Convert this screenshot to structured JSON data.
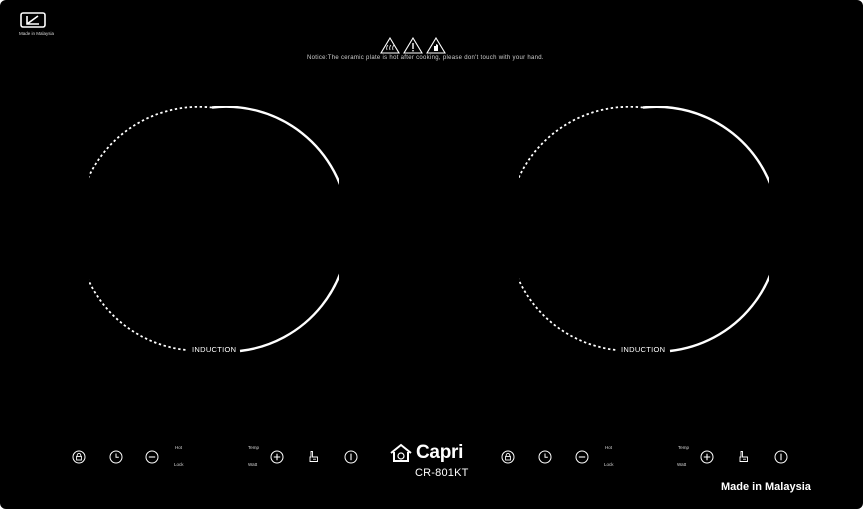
{
  "badge": {
    "top_label": "Made in Malaysia"
  },
  "notice": {
    "text": "Notice:The ceramic plate is hot after cooking, please don't touch with your hand."
  },
  "zones": [
    {
      "label": "INDUCTION"
    },
    {
      "label": "INDUCTION"
    }
  ],
  "controls": {
    "left": {
      "hot": "Hot",
      "lock": "Lock",
      "temp": "Temp",
      "watt": "Watt"
    },
    "right": {
      "hot": "Hot",
      "lock": "Lock",
      "temp": "Temp",
      "watt": "Watt"
    }
  },
  "brand": {
    "name": "Capri",
    "model": "CR-801KT"
  },
  "footer": {
    "made_in": "Made in Malaysia"
  },
  "colors": {
    "panel": "#000000",
    "foreground": "#ffffff"
  },
  "icons": [
    "lock-icon",
    "timer-icon",
    "minus-icon",
    "plus-icon",
    "hand-icon",
    "power-icon",
    "warning-icon",
    "home-icon"
  ]
}
